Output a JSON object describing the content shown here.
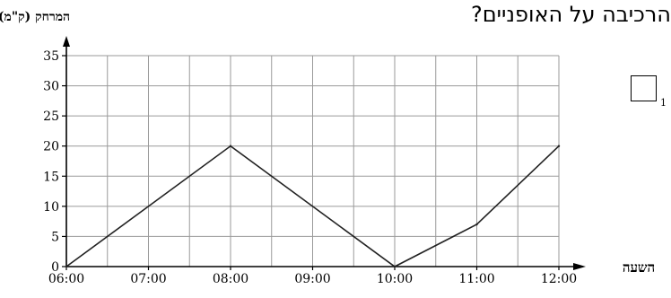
{
  "question": {
    "text": "הרכיבה על האופניים?",
    "option_index": "1"
  },
  "chart_data": {
    "type": "line",
    "ylabel": "המרחק (ק\"מ)",
    "xlabel": "השעה",
    "x_ticks": [
      "06:00",
      "07:00",
      "08:00",
      "09:00",
      "10:00",
      "11:00",
      "12:00"
    ],
    "x_range": [
      6,
      12
    ],
    "y_ticks": [
      0,
      5,
      10,
      15,
      20,
      25,
      30,
      35
    ],
    "ylim": [
      0,
      35
    ],
    "grid": true,
    "x_grid_step": 0.5,
    "y_grid_step": 5,
    "series": [
      {
        "color": "#222222",
        "x": [
          6,
          8,
          10,
          11,
          12
        ],
        "y": [
          0,
          20,
          0,
          7,
          20
        ]
      }
    ]
  }
}
